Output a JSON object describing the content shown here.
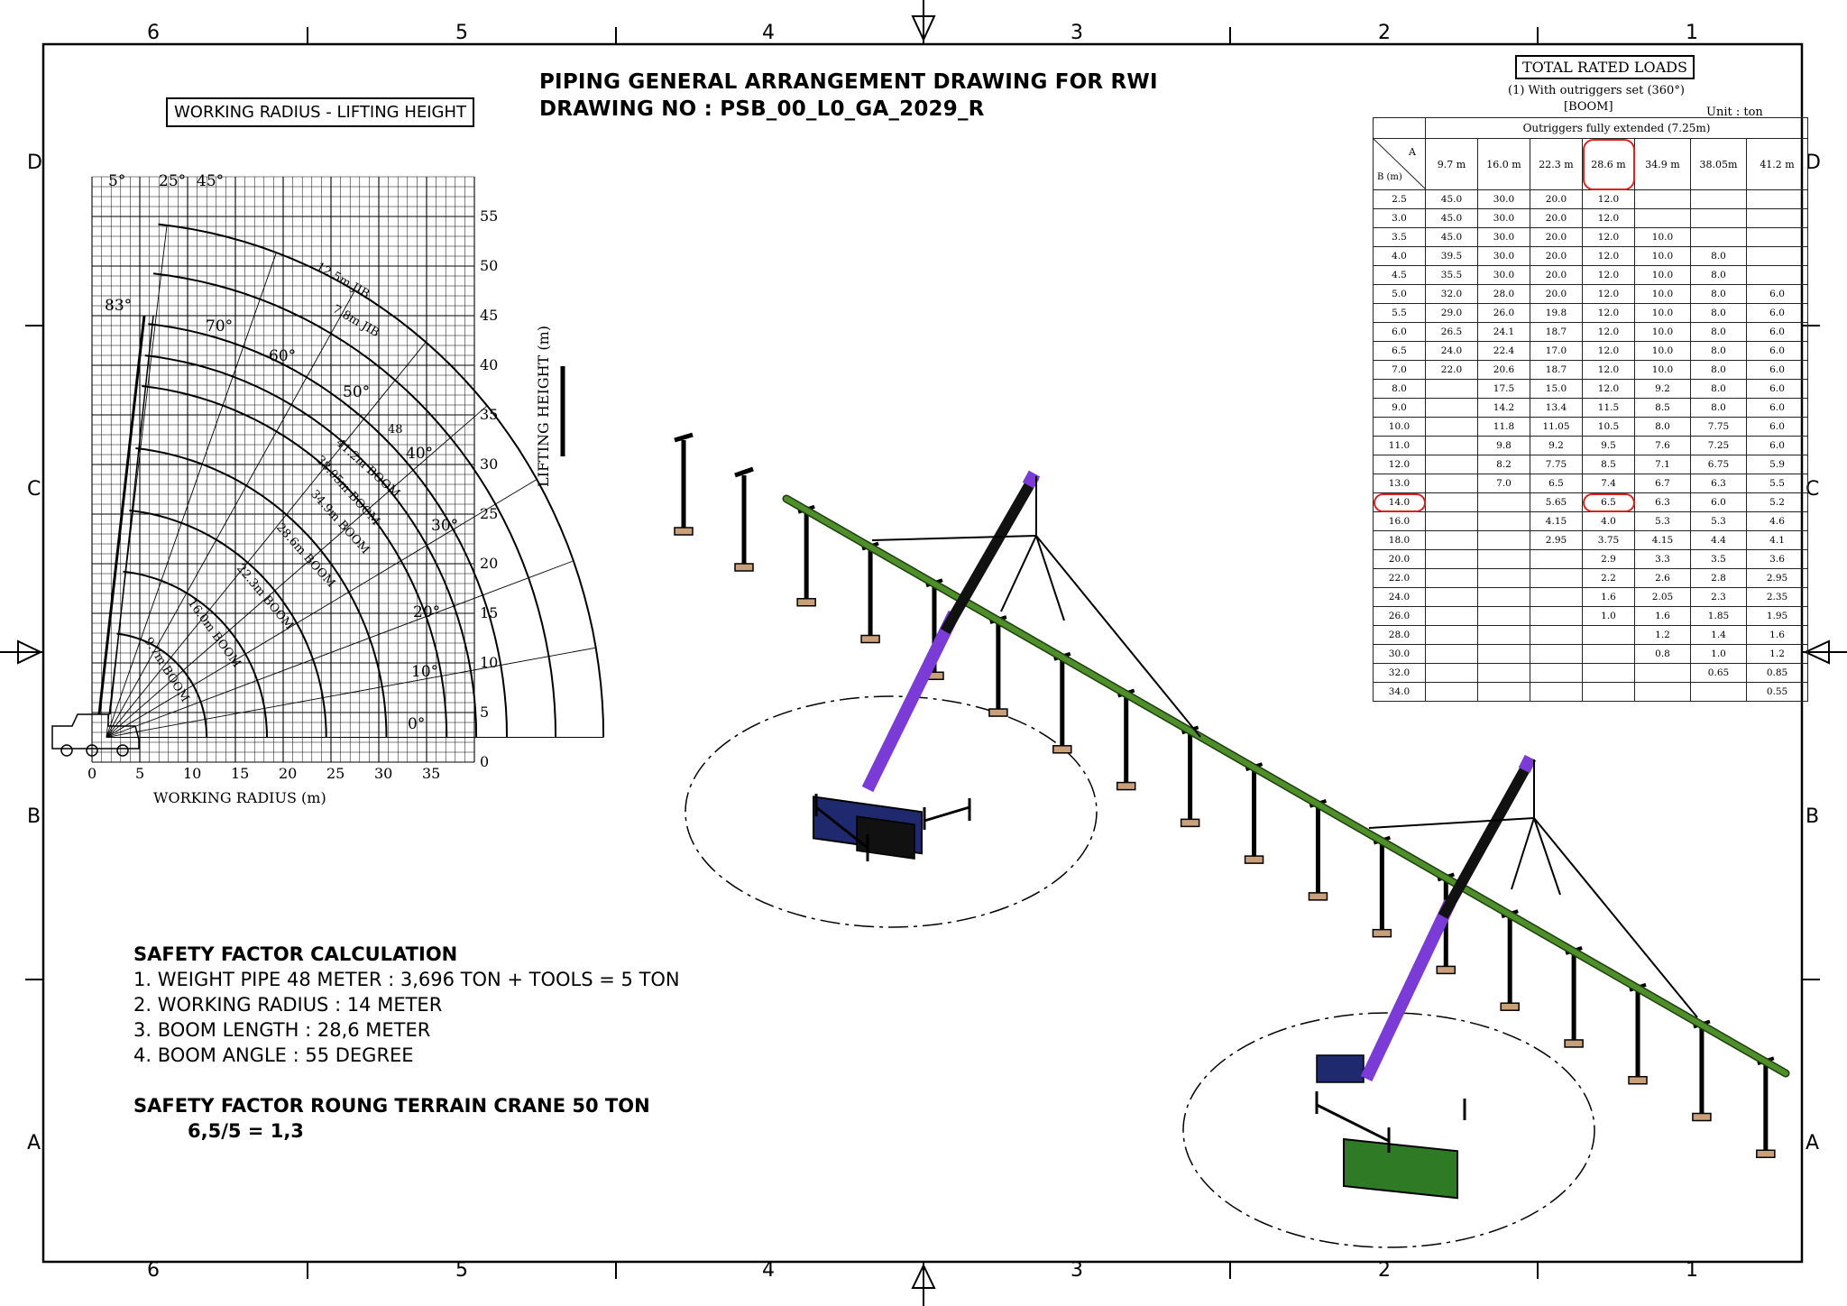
{
  "drawing": {
    "title_line1": "PIPING GENERAL ARRANGEMENT DRAWING FOR RWI",
    "title_line2": "DRAWING NO : PSB_00_L0_GA_2029_R"
  },
  "border": {
    "column_labels": [
      "6",
      "5",
      "4",
      "3",
      "2",
      "1"
    ],
    "row_labels": [
      "D",
      "C",
      "B",
      "A"
    ]
  },
  "range_chart": {
    "title": "WORKING RADIUS - LIFTING HEIGHT",
    "xlabel": "WORKING RADIUS (m)",
    "ylabel": "LIFTING HEIGHT (m)",
    "x_ticks": [
      "0",
      "5",
      "10",
      "15",
      "20",
      "25",
      "30",
      "35"
    ],
    "y_ticks": [
      "0",
      "5",
      "10",
      "15",
      "20",
      "25",
      "30",
      "35",
      "40",
      "45",
      "50",
      "55"
    ],
    "angle_labels": [
      "5°",
      "25°",
      "45°",
      "83°",
      "70°",
      "60°",
      "50°",
      "40°",
      "30°",
      "20°",
      "10°",
      "0°"
    ],
    "boom_labels": [
      "12.5m JIB",
      "7.8m JIB",
      "41.2m BOOM",
      "38.05m BOOM",
      "34.9m BOOM",
      "28.6m BOOM",
      "22.3m BOOM",
      "16.0m BOOM",
      "9.7m BOOM",
      "48"
    ]
  },
  "load_table": {
    "title": "TOTAL RATED LOADS",
    "subtitle": "(1) With outriggers set (360°)",
    "section": "[BOOM]",
    "unit": "Unit : ton",
    "extension_header": "Outriggers fully extended (7.25m)",
    "corner_top": "A",
    "corner_bottom": "B (m)",
    "boom_lengths": [
      "9.7 m",
      "16.0 m",
      "22.3 m",
      "28.6 m",
      "34.9 m",
      "38.05m",
      "41.2 m"
    ],
    "rows": [
      [
        "2.5",
        "45.0",
        "30.0",
        "20.0",
        "12.0",
        "",
        "",
        ""
      ],
      [
        "3.0",
        "45.0",
        "30.0",
        "20.0",
        "12.0",
        "",
        "",
        ""
      ],
      [
        "3.5",
        "45.0",
        "30.0",
        "20.0",
        "12.0",
        "10.0",
        "",
        ""
      ],
      [
        "4.0",
        "39.5",
        "30.0",
        "20.0",
        "12.0",
        "10.0",
        "8.0",
        ""
      ],
      [
        "4.5",
        "35.5",
        "30.0",
        "20.0",
        "12.0",
        "10.0",
        "8.0",
        ""
      ],
      [
        "5.0",
        "32.0",
        "28.0",
        "20.0",
        "12.0",
        "10.0",
        "8.0",
        "6.0"
      ],
      [
        "5.5",
        "29.0",
        "26.0",
        "19.8",
        "12.0",
        "10.0",
        "8.0",
        "6.0"
      ],
      [
        "6.0",
        "26.5",
        "24.1",
        "18.7",
        "12.0",
        "10.0",
        "8.0",
        "6.0"
      ],
      [
        "6.5",
        "24.0",
        "22.4",
        "17.0",
        "12.0",
        "10.0",
        "8.0",
        "6.0"
      ],
      [
        "7.0",
        "22.0",
        "20.6",
        "18.7",
        "12.0",
        "10.0",
        "8.0",
        "6.0"
      ],
      [
        "8.0",
        "",
        "17.5",
        "15.0",
        "12.0",
        "9.2",
        "8.0",
        "6.0"
      ],
      [
        "9.0",
        "",
        "14.2",
        "13.4",
        "11.5",
        "8.5",
        "8.0",
        "6.0"
      ],
      [
        "10.0",
        "",
        "11.8",
        "11.05",
        "10.5",
        "8.0",
        "7.75",
        "6.0"
      ],
      [
        "11.0",
        "",
        "9.8",
        "9.2",
        "9.5",
        "7.6",
        "7.25",
        "6.0"
      ],
      [
        "12.0",
        "",
        "8.2",
        "7.75",
        "8.5",
        "7.1",
        "6.75",
        "5.9"
      ],
      [
        "13.0",
        "",
        "7.0",
        "6.5",
        "7.4",
        "6.7",
        "6.3",
        "5.5"
      ],
      [
        "14.0",
        "",
        "",
        "5.65",
        "6.5",
        "6.3",
        "6.0",
        "5.2"
      ],
      [
        "16.0",
        "",
        "",
        "4.15",
        "4.0",
        "5.3",
        "5.3",
        "4.6"
      ],
      [
        "18.0",
        "",
        "",
        "2.95",
        "3.75",
        "4.15",
        "4.4",
        "4.1"
      ],
      [
        "20.0",
        "",
        "",
        "",
        "2.9",
        "3.3",
        "3.5",
        "3.6"
      ],
      [
        "22.0",
        "",
        "",
        "",
        "2.2",
        "2.6",
        "2.8",
        "2.95"
      ],
      [
        "24.0",
        "",
        "",
        "",
        "1.6",
        "2.05",
        "2.3",
        "2.35"
      ],
      [
        "26.0",
        "",
        "",
        "",
        "1.0",
        "1.6",
        "1.85",
        "1.95"
      ],
      [
        "28.0",
        "",
        "",
        "",
        "",
        "1.2",
        "1.4",
        "1.6"
      ],
      [
        "30.0",
        "",
        "",
        "",
        "",
        "0.8",
        "1.0",
        "1.2"
      ],
      [
        "32.0",
        "",
        "",
        "",
        "",
        "",
        "0.65",
        "0.85"
      ],
      [
        "34.0",
        "",
        "",
        "",
        "",
        "",
        "",
        "0.55"
      ]
    ]
  },
  "safety": {
    "heading": "SAFETY FACTOR CALCULATION",
    "items": [
      "1. WEIGHT PIPE 48 METER : 3,696 TON + TOOLS = 5 TON",
      "2. WORKING RADIUS : 14 METER",
      "3. BOOM LENGTH : 28,6 METER",
      "4. BOOM ANGLE : 55 DEGREE"
    ],
    "result_heading": "SAFETY FACTOR ROUNG TERRAIN CRANE 50 TON",
    "result_value": "6,5/5 = 1,3"
  },
  "colors": {
    "pipe": "#4f8f2a",
    "boom_upper": "#111111",
    "boom_lower": "#7a3bd6",
    "crane_body_1": "#1f2a6e",
    "crane_body_2": "#2f7a25",
    "highlight": "#dd2222"
  }
}
